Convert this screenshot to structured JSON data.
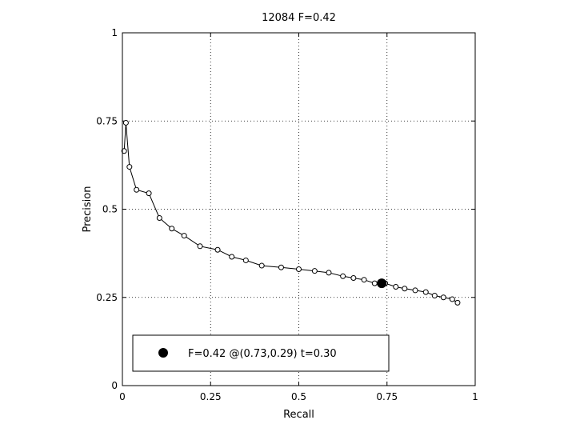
{
  "chart_data": {
    "type": "line",
    "title": "12084 F=0.42",
    "xlabel": "Recall",
    "ylabel": "Precision",
    "xlim": [
      0,
      1
    ],
    "ylim": [
      0,
      1
    ],
    "xticks": [
      0,
      0.25,
      0.5,
      0.75,
      1
    ],
    "xtick_labels": [
      "0",
      "0.25",
      "0.5",
      "0.75",
      "1"
    ],
    "yticks": [
      0,
      0.25,
      0.5,
      0.75,
      1
    ],
    "ytick_labels": [
      "0",
      "0.25",
      "0.5",
      "0.75",
      "1"
    ],
    "grid": true,
    "legend_position": "bottom-left",
    "legend_label": "F=0.42 @(0.73,0.29) t=0.30",
    "series": [
      {
        "marker": "open-circle",
        "color": "#000000",
        "x": [
          0.005,
          0.01,
          0.02,
          0.04,
          0.075,
          0.105,
          0.14,
          0.175,
          0.22,
          0.27,
          0.31,
          0.35,
          0.395,
          0.45,
          0.5,
          0.545,
          0.585,
          0.625,
          0.655,
          0.685,
          0.715,
          0.745,
          0.775,
          0.8,
          0.83,
          0.86,
          0.885,
          0.91,
          0.935,
          0.95
        ],
        "y": [
          0.665,
          0.745,
          0.62,
          0.555,
          0.545,
          0.475,
          0.445,
          0.425,
          0.395,
          0.385,
          0.365,
          0.355,
          0.34,
          0.335,
          0.33,
          0.325,
          0.32,
          0.31,
          0.305,
          0.3,
          0.29,
          0.29,
          0.28,
          0.275,
          0.27,
          0.265,
          0.255,
          0.25,
          0.245,
          0.235
        ]
      }
    ],
    "highlight": {
      "x": 0.735,
      "y": 0.29,
      "marker": "filled-circle",
      "color": "#000000"
    }
  }
}
